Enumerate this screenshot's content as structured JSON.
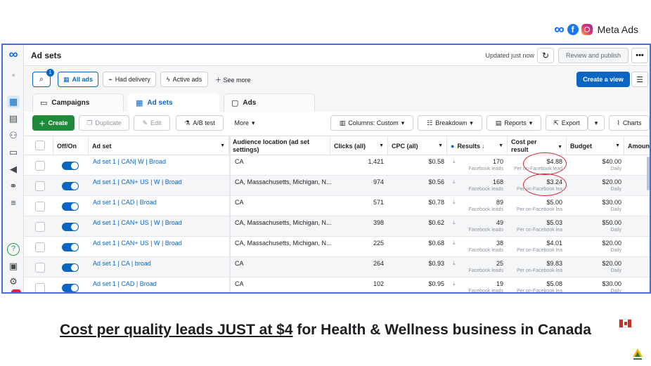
{
  "brand": {
    "label": "Meta Ads"
  },
  "topbar": {
    "title": "Ad sets",
    "updated": "Updated just now",
    "review_label": "Review and publish",
    "more_label": "•••"
  },
  "filters": {
    "badge_count": "1",
    "chips": [
      "All ads",
      "Had delivery",
      "Active ads"
    ],
    "see_more": "See more",
    "create_view": "Create a view"
  },
  "tabs": [
    "Campaigns",
    "Ad sets",
    "Ads"
  ],
  "toolbar": {
    "create": "Create",
    "duplicate": "Duplicate",
    "edit": "Edit",
    "ab_test": "A/B test",
    "more": "More",
    "columns": "Columns: Custom",
    "breakdown": "Breakdown",
    "reports": "Reports",
    "export": "Export",
    "charts": "Charts"
  },
  "table": {
    "headers": {
      "toggle": "Off/On",
      "name": "Ad set",
      "location": "Audience location (ad set settings)",
      "clicks": "Clicks (all)",
      "cpc": "CPC (all)",
      "results": "Results",
      "cost_per_result": "Cost per result",
      "budget": "Budget",
      "amount": "Amoun"
    },
    "rows": [
      {
        "name": "Ad set 1 | CAN| W | Broad",
        "location": "CA",
        "clicks": "1,421",
        "cpc": "$0.58",
        "results": "170",
        "results_sub": "Facebook leads",
        "cpr": "$4.88",
        "cpr_sub": "Per on-Facebook lead",
        "budget": "$40.00",
        "budget_sub": "Daily"
      },
      {
        "name": "Ad set 1 | CAN+ US | W | Broad",
        "location": "CA, Massachusetts, Michigan, N...",
        "clicks": "974",
        "cpc": "$0.56",
        "results": "168",
        "results_sub": "Facebook leads",
        "cpr": "$3.24",
        "cpr_sub": "Per on-Facebook lea",
        "budget": "$20.00",
        "budget_sub": "Daily"
      },
      {
        "name": "Ad set 1 | CAD | Broad",
        "location": "CA",
        "clicks": "571",
        "cpc": "$0.78",
        "results": "89",
        "results_sub": "Facebook leads",
        "cpr": "$5.00",
        "cpr_sub": "Per on-Facebook lea",
        "budget": "$30.00",
        "budget_sub": "Daily"
      },
      {
        "name": "Ad set 1 | CAN+ US | W | Broad",
        "location": "CA, Massachusetts, Michigan, N...",
        "clicks": "398",
        "cpc": "$0.62",
        "results": "49",
        "results_sub": "Facebook leads",
        "cpr": "$5.03",
        "cpr_sub": "Per on-Facebook lea",
        "budget": "$50.00",
        "budget_sub": "Daily"
      },
      {
        "name": "Ad set 1 | CAN+ US | W | Broad",
        "location": "CA, Massachusetts, Michigan, N...",
        "clicks": "225",
        "cpc": "$0.68",
        "results": "38",
        "results_sub": "Facebook leads",
        "cpr": "$4.01",
        "cpr_sub": "Per on-Facebook lea",
        "budget": "$20.00",
        "budget_sub": "Daily"
      },
      {
        "name": "Ad set 1 | CA | broad",
        "location": "CA",
        "clicks": "264",
        "cpc": "$0.93",
        "results": "25",
        "results_sub": "Facebook leads",
        "cpr": "$9.83",
        "cpr_sub": "Per on-Facebook lea",
        "budget": "$20.00",
        "budget_sub": "Daily"
      },
      {
        "name": "Ad set 1 | CAD | Broad",
        "location": "CA",
        "clicks": "102",
        "cpc": "$0.95",
        "results": "19",
        "results_sub": "Facebook leads",
        "cpr": "$5.08",
        "cpr_sub": "Per on-Facebook lea",
        "budget": "$30.00",
        "budget_sub": "Daily"
      }
    ]
  },
  "caption": {
    "underlined": "Cost per quality leads JUST at $4",
    "rest": " for Health & Wellness business in Canada"
  },
  "colors": {
    "accent": "#0a66c2",
    "create_green": "#1f8a3a",
    "frame_border": "#4a6ee0",
    "highlight_circle": "#e0242e"
  }
}
